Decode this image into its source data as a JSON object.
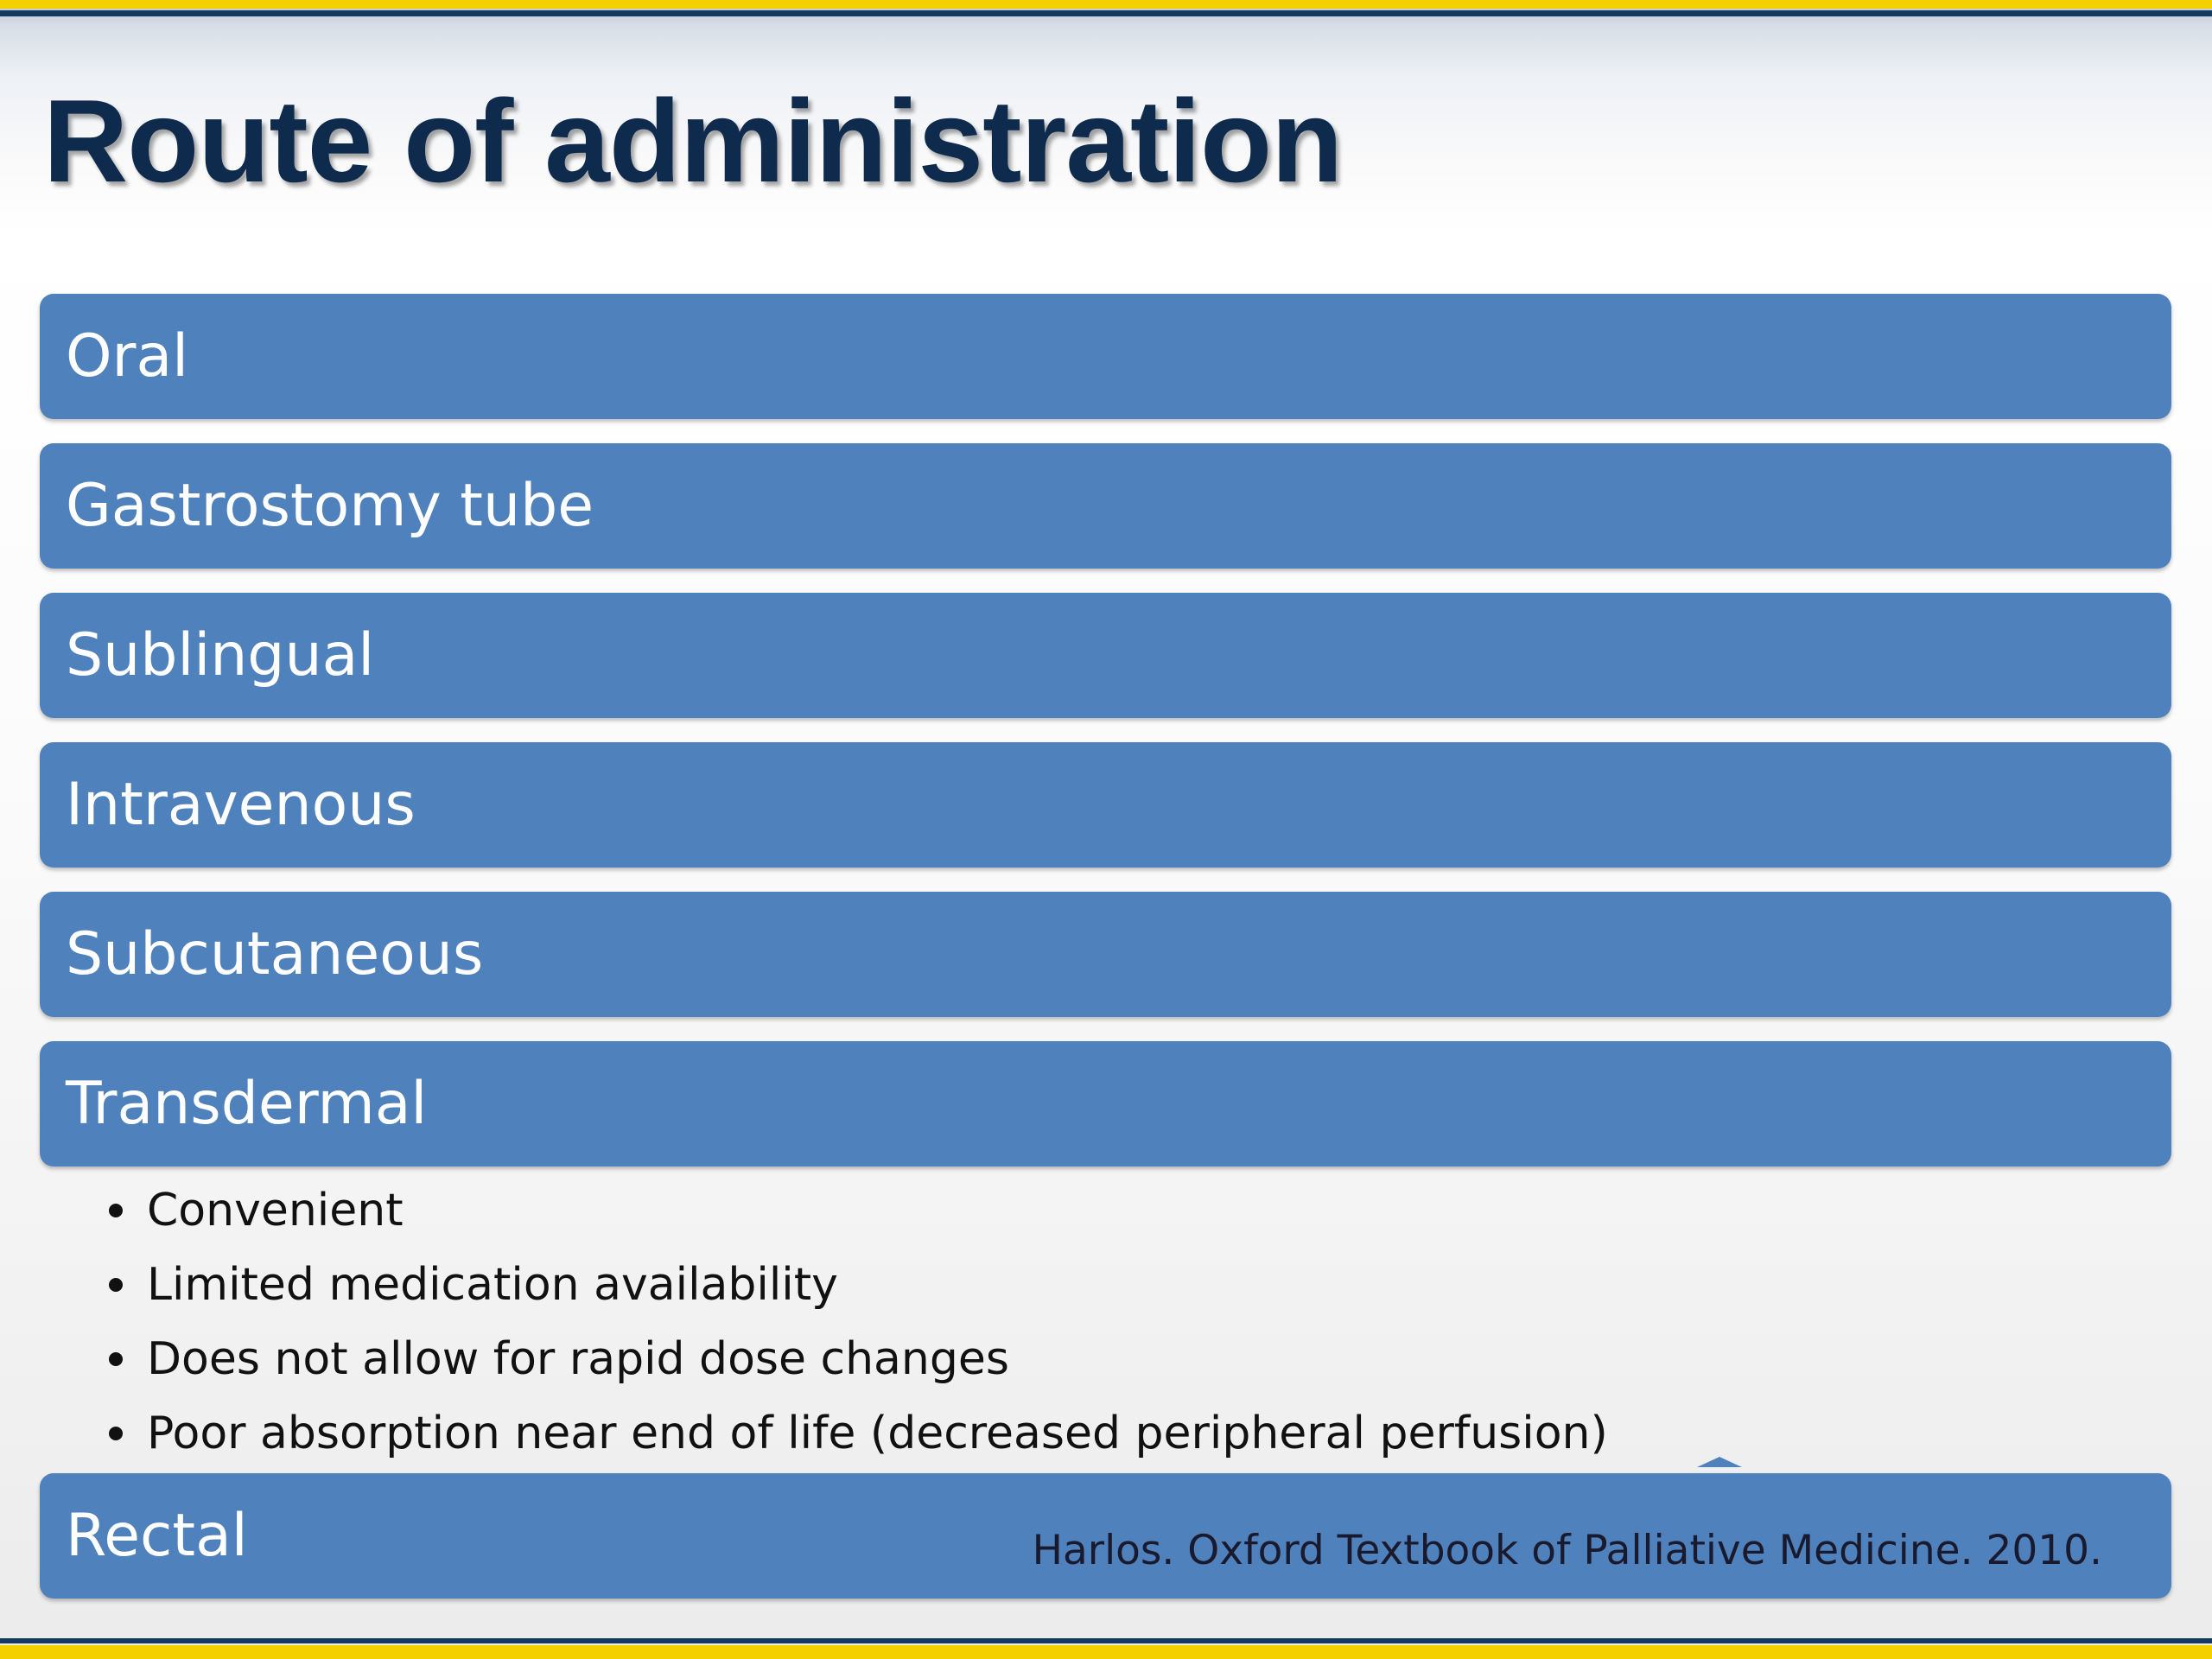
{
  "slide": {
    "title": "Route of administration",
    "colors": {
      "route_bar": "#4f81bd",
      "title_text": "#0e2a4d",
      "accent_yellow": "#f4d000",
      "accent_navy": "#16395f"
    }
  },
  "routes": [
    {
      "label": "Oral"
    },
    {
      "label": "Gastrostomy tube"
    },
    {
      "label": "Sublingual"
    },
    {
      "label": "Intravenous"
    },
    {
      "label": "Subcutaneous"
    },
    {
      "label": "Transdermal"
    },
    {
      "label": "Rectal"
    }
  ],
  "transdermal_notes": [
    "Convenient",
    "Limited medication availability",
    "Does not allow for rapid dose changes",
    "Poor absorption near end of life (decreased peripheral perfusion)"
  ],
  "citation": "Harlos.  Oxford Textbook of Palliative Medicine.  2010."
}
